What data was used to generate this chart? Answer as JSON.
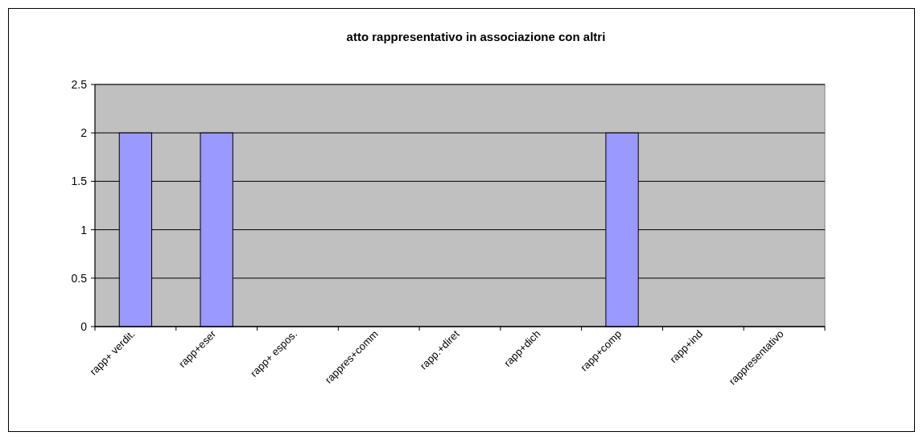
{
  "chart_data": {
    "type": "bar",
    "title": "atto rappresentativo in associazione con altri",
    "categories": [
      "rapp+ verdit.",
      "rapp+eser",
      "rapp+ espos.",
      "rappres+comm",
      "rapp.+diret",
      "rapp+dich",
      "rapp+comp",
      "rapp+ind",
      "rappresentativo"
    ],
    "values": [
      2,
      2,
      0,
      0,
      0,
      0,
      2,
      0,
      0
    ],
    "color": "#9999ff",
    "ylim": [
      0,
      2.5
    ],
    "yticks": [
      0,
      0.5,
      1,
      1.5,
      2,
      2.5
    ],
    "grid": "y"
  }
}
